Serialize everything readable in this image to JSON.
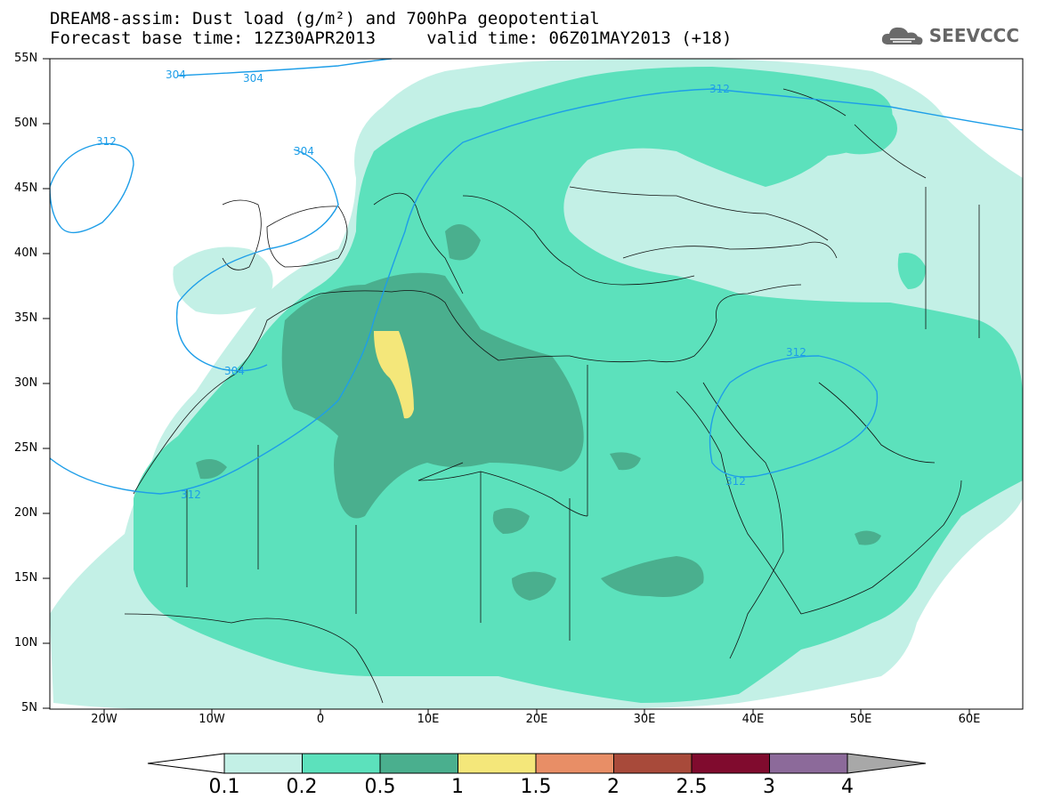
{
  "title": {
    "line1": "DREAM8-assim: Dust load (g/m²) and 700hPa geopotential",
    "line2": "Forecast base time: 12Z30APR2013     valid time: 06Z01MAY2013 (+18)"
  },
  "logo": {
    "text": "SEEVCCC",
    "icon": "cloud-logo-icon"
  },
  "axes": {
    "lat_labels": [
      "55N",
      "50N",
      "45N",
      "40N",
      "35N",
      "30N",
      "25N",
      "20N",
      "15N",
      "10N",
      "5N"
    ],
    "lon_labels": [
      "20W",
      "10W",
      "0",
      "10E",
      "20E",
      "30E",
      "40E",
      "50E",
      "60E"
    ]
  },
  "contours": [
    "304",
    "304",
    "304",
    "312",
    "312",
    "312",
    "312",
    "312",
    "304"
  ],
  "colorbar": {
    "labels": [
      "0.1",
      "0.2",
      "0.5",
      "1",
      "1.5",
      "2",
      "2.5",
      "3",
      "4"
    ],
    "colors": [
      "#c3f0e6",
      "#5ce1bc",
      "#4aaf8e",
      "#f4e77a",
      "#e88e66",
      "#a84a3a",
      "#800b2e",
      "#8c6a9a",
      "#a8a8a8"
    ]
  },
  "colors": {
    "light": "#c3f0e6",
    "medium": "#5ce1bc",
    "dark": "#4aaf8e",
    "yellow": "#f4e77a",
    "contour": "#1e9ee8"
  }
}
